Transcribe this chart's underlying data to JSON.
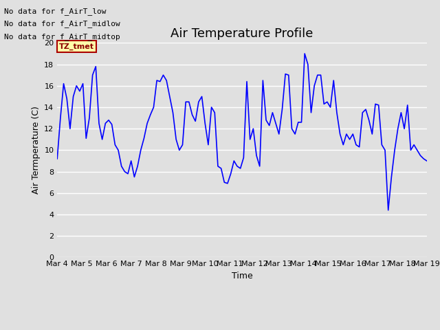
{
  "title": "Air Temperature Profile",
  "xlabel": "Time",
  "ylabel": "Air Termperature (C)",
  "ylim": [
    0,
    20
  ],
  "yticks": [
    0,
    2,
    4,
    6,
    8,
    10,
    12,
    14,
    16,
    18,
    20
  ],
  "xtick_labels": [
    "Mar 4",
    "Mar 5",
    "Mar 6",
    "Mar 7",
    "Mar 8",
    "Mar 9",
    "Mar 10",
    "Mar 11",
    "Mar 12",
    "Mar 13",
    "Mar 14",
    "Mar 15",
    "Mar 16",
    "Mar 17",
    "Mar 18",
    "Mar 19"
  ],
  "line_color": "#0000ff",
  "bg_color": "#e0e0e0",
  "plot_bg_color": "#e0e0e0",
  "no_data_texts": [
    "No data for f_AirT_low",
    "No data for f_AirT_midlow",
    "No data for f_AirT_midtop"
  ],
  "tz_label": "TZ_tmet",
  "title_fontsize": 13,
  "axis_label_fontsize": 9,
  "tick_fontsize": 8,
  "y_values": [
    9.2,
    13.0,
    16.2,
    14.8,
    12.0,
    15.0,
    16.0,
    15.5,
    16.2,
    11.1,
    13.0,
    17.0,
    17.8,
    12.5,
    11.0,
    12.5,
    12.8,
    12.4,
    10.5,
    10.0,
    8.5,
    8.0,
    7.8,
    9.0,
    7.5,
    8.5,
    10.0,
    11.1,
    12.5,
    13.3,
    14.0,
    16.5,
    16.4,
    17.0,
    16.5,
    15.0,
    13.5,
    11.0,
    10.0,
    10.5,
    14.5,
    14.5,
    13.3,
    12.7,
    14.5,
    15.0,
    12.5,
    10.5,
    14.0,
    13.5,
    8.5,
    8.3,
    7.0,
    6.9,
    7.8,
    9.0,
    8.5,
    8.3,
    9.3,
    16.4,
    11.0,
    12.0,
    9.5,
    8.5,
    16.5,
    12.8,
    12.3,
    13.5,
    12.5,
    11.5,
    13.8,
    17.1,
    17.0,
    12.0,
    11.5,
    12.6,
    12.6,
    19.0,
    18.0,
    13.5,
    16.0,
    17.0,
    17.0,
    14.3,
    14.5,
    14.0,
    16.5,
    13.5,
    11.5,
    10.5,
    11.5,
    11.0,
    11.5,
    10.5,
    10.3,
    13.5,
    13.8,
    12.8,
    11.5,
    14.3,
    14.2,
    10.5,
    10.0,
    4.4,
    7.5,
    10.0,
    12.0,
    13.5,
    12.0,
    14.2,
    10.0,
    10.5,
    10.0,
    9.5,
    9.2,
    9.0
  ]
}
